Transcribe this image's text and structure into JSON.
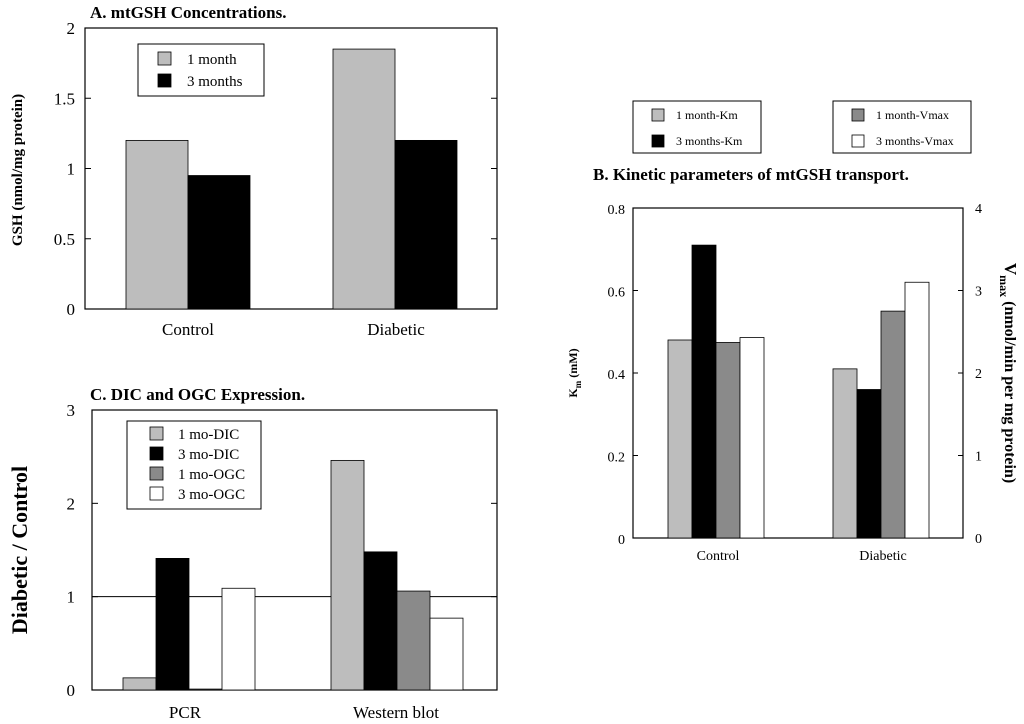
{
  "colors": {
    "light_gray": "#bdbdbd",
    "black": "#000000",
    "dark_gray": "#8a8a8a",
    "white": "#ffffff"
  },
  "chart_data": [
    {
      "id": "A",
      "type": "bar",
      "title": "A. mtGSH Concentrations.",
      "ylabel": "GSH (nmol/mg protein)",
      "xlabel": "",
      "categories": [
        "Control",
        "Diabetic"
      ],
      "ylim": [
        0,
        2
      ],
      "yticks": [
        0,
        0.5,
        1,
        1.5,
        2
      ],
      "ytick_labels": [
        "0",
        "0.5",
        "1",
        "1.5",
        "2"
      ],
      "series": [
        {
          "name": "1 month",
          "values": [
            1.2,
            1.85
          ],
          "color": "#bdbdbd"
        },
        {
          "name": "3 months",
          "values": [
            0.95,
            1.2
          ],
          "color": "#000000"
        }
      ],
      "legend": "top-left"
    },
    {
      "id": "B",
      "type": "bar",
      "title": "B. Kinetic parameters of mtGSH transport.",
      "ylabel": "K",
      "ylabel_sub": "m",
      "ylabel_unit": " (mM)",
      "y2label": "V",
      "y2label_sub": "max",
      "y2label_unit": " (nmol/min per mg protein)",
      "categories": [
        "Control",
        "Diabetic"
      ],
      "ylim": [
        0,
        0.8
      ],
      "yticks": [
        0,
        0.2,
        0.4,
        0.6,
        0.8
      ],
      "ytick_labels": [
        "0",
        "0.2",
        "0.4",
        "0.6",
        "0.8"
      ],
      "y2lim": [
        0,
        4
      ],
      "y2ticks": [
        0,
        1,
        2,
        3,
        4
      ],
      "y2tick_labels": [
        "0",
        "1",
        "2",
        "3",
        "4"
      ],
      "series": [
        {
          "name": "1 month-Km",
          "values": [
            0.48,
            0.41
          ],
          "color": "#bdbdbd",
          "axis": "left"
        },
        {
          "name": "3 months-Km",
          "values": [
            0.71,
            0.36
          ],
          "color": "#000000",
          "axis": "left"
        },
        {
          "name": "1 month-Vmax",
          "values": [
            2.37,
            2.75
          ],
          "color": "#8a8a8a",
          "axis": "right"
        },
        {
          "name": "3 months-Vmax",
          "values": [
            2.43,
            3.1
          ],
          "color": "#ffffff",
          "axis": "right"
        }
      ],
      "legend": "above plot, two boxes"
    },
    {
      "id": "C",
      "type": "bar",
      "title": "C. DIC and OGC Expression.",
      "ylabel": "Diabetic / Control",
      "categories": [
        "PCR",
        "Western blot"
      ],
      "ylim": [
        0,
        3
      ],
      "yticks": [
        0,
        1,
        2,
        3
      ],
      "ytick_labels": [
        "0",
        "1",
        "2",
        "3"
      ],
      "reference_line": 1,
      "series": [
        {
          "name": "1 mo-DIC",
          "values": [
            0.13,
            2.46
          ],
          "color": "#bdbdbd"
        },
        {
          "name": "3 mo-DIC",
          "values": [
            1.41,
            1.48
          ],
          "color": "#000000"
        },
        {
          "name": "1 mo-OGC",
          "values": [
            0.01,
            1.06
          ],
          "color": "#8a8a8a"
        },
        {
          "name": "3 mo-OGC",
          "values": [
            1.09,
            0.77
          ],
          "color": "#ffffff"
        }
      ],
      "legend": "top-left"
    }
  ]
}
